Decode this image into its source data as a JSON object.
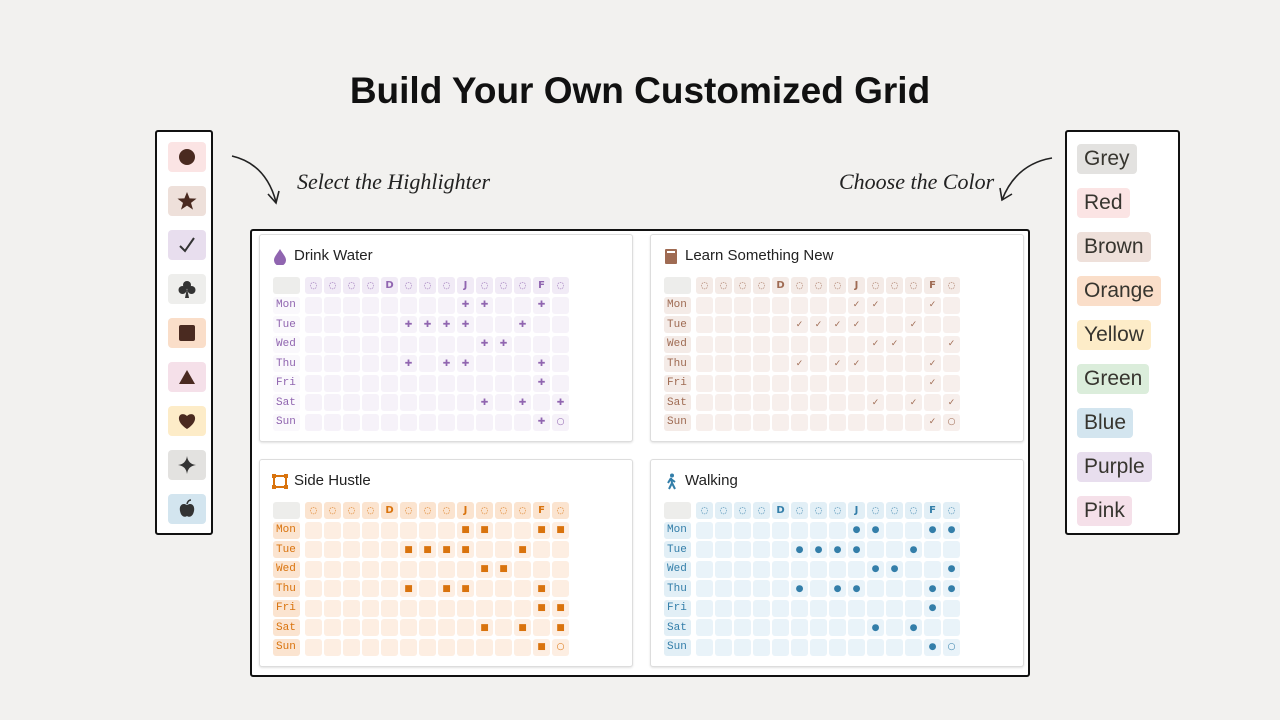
{
  "header": {
    "title": "Build Your Own Customized Grid"
  },
  "highlighter": {
    "label": "Select the Highlighter"
  },
  "color_picker": {
    "label": "Choose the Color",
    "colors": [
      "Grey",
      "Red",
      "Brown",
      "Orange",
      "Yellow",
      "Green",
      "Blue",
      "Purple",
      "Pink"
    ]
  },
  "cards": [
    {
      "title": "Drink Water",
      "columns": [
        "◌",
        "◌",
        "◌",
        "◌",
        "D",
        "◌",
        "◌",
        "◌",
        "J",
        "◌",
        "◌",
        "◌",
        "F",
        "◌"
      ],
      "rows": [
        {
          "day": "Mon",
          "cells": [
            null,
            null,
            null,
            null,
            null,
            null,
            null,
            null,
            "✚",
            "✚",
            null,
            null,
            "✚",
            null
          ]
        },
        {
          "day": "Tue",
          "cells": [
            null,
            null,
            null,
            null,
            null,
            "✚",
            "✚",
            "✚",
            "✚",
            null,
            null,
            "✚",
            null,
            null
          ]
        },
        {
          "day": "Wed",
          "cells": [
            null,
            null,
            null,
            null,
            null,
            null,
            null,
            null,
            null,
            "✚",
            "✚",
            null,
            null,
            null
          ]
        },
        {
          "day": "Thu",
          "cells": [
            null,
            null,
            null,
            null,
            null,
            "✚",
            null,
            "✚",
            "✚",
            null,
            null,
            null,
            "✚",
            null
          ]
        },
        {
          "day": "Fri",
          "cells": [
            null,
            null,
            null,
            null,
            null,
            null,
            null,
            null,
            null,
            null,
            null,
            null,
            "✚",
            null
          ]
        },
        {
          "day": "Sat",
          "cells": [
            null,
            null,
            null,
            null,
            null,
            null,
            null,
            null,
            null,
            "✚",
            null,
            "✚",
            null,
            "✚"
          ]
        },
        {
          "day": "Sun",
          "cells": [
            null,
            null,
            null,
            null,
            null,
            null,
            null,
            null,
            null,
            null,
            null,
            null,
            "✚",
            "○"
          ]
        }
      ]
    },
    {
      "title": "Learn Something New",
      "columns": [
        "◌",
        "◌",
        "◌",
        "◌",
        "D",
        "◌",
        "◌",
        "◌",
        "J",
        "◌",
        "◌",
        "◌",
        "F",
        "◌"
      ],
      "rows": [
        {
          "day": "Mon",
          "cells": [
            null,
            null,
            null,
            null,
            null,
            null,
            null,
            null,
            "✓",
            "✓",
            null,
            null,
            "✓",
            null
          ]
        },
        {
          "day": "Tue",
          "cells": [
            null,
            null,
            null,
            null,
            null,
            "✓",
            "✓",
            "✓",
            "✓",
            null,
            null,
            "✓",
            null,
            null
          ]
        },
        {
          "day": "Wed",
          "cells": [
            null,
            null,
            null,
            null,
            null,
            null,
            null,
            null,
            null,
            "✓",
            "✓",
            null,
            null,
            "✓"
          ]
        },
        {
          "day": "Thu",
          "cells": [
            null,
            null,
            null,
            null,
            null,
            "✓",
            null,
            "✓",
            "✓",
            null,
            null,
            null,
            "✓",
            null
          ]
        },
        {
          "day": "Fri",
          "cells": [
            null,
            null,
            null,
            null,
            null,
            null,
            null,
            null,
            null,
            null,
            null,
            null,
            "✓",
            null
          ]
        },
        {
          "day": "Sat",
          "cells": [
            null,
            null,
            null,
            null,
            null,
            null,
            null,
            null,
            null,
            "✓",
            null,
            "✓",
            null,
            "✓"
          ]
        },
        {
          "day": "Sun",
          "cells": [
            null,
            null,
            null,
            null,
            null,
            null,
            null,
            null,
            null,
            null,
            null,
            null,
            "✓",
            "○"
          ]
        }
      ]
    },
    {
      "title": "Side Hustle",
      "columns": [
        "◌",
        "◌",
        "◌",
        "◌",
        "D",
        "◌",
        "◌",
        "◌",
        "J",
        "◌",
        "◌",
        "◌",
        "F",
        "◌"
      ],
      "rows": [
        {
          "day": "Mon",
          "cells": [
            null,
            null,
            null,
            null,
            null,
            null,
            null,
            null,
            "■",
            "■",
            null,
            null,
            "■",
            "■"
          ]
        },
        {
          "day": "Tue",
          "cells": [
            null,
            null,
            null,
            null,
            null,
            "■",
            "■",
            "■",
            "■",
            null,
            null,
            "■",
            null,
            null
          ]
        },
        {
          "day": "Wed",
          "cells": [
            null,
            null,
            null,
            null,
            null,
            null,
            null,
            null,
            null,
            "■",
            "■",
            null,
            null,
            null
          ]
        },
        {
          "day": "Thu",
          "cells": [
            null,
            null,
            null,
            null,
            null,
            "■",
            null,
            "■",
            "■",
            null,
            null,
            null,
            "■",
            null
          ]
        },
        {
          "day": "Fri",
          "cells": [
            null,
            null,
            null,
            null,
            null,
            null,
            null,
            null,
            null,
            null,
            null,
            null,
            "■",
            "■"
          ]
        },
        {
          "day": "Sat",
          "cells": [
            null,
            null,
            null,
            null,
            null,
            null,
            null,
            null,
            null,
            "■",
            null,
            "■",
            null,
            "■"
          ]
        },
        {
          "day": "Sun",
          "cells": [
            null,
            null,
            null,
            null,
            null,
            null,
            null,
            null,
            null,
            null,
            null,
            null,
            "■",
            "○"
          ]
        }
      ]
    },
    {
      "title": "Walking",
      "columns": [
        "◌",
        "◌",
        "◌",
        "◌",
        "D",
        "◌",
        "◌",
        "◌",
        "J",
        "◌",
        "◌",
        "◌",
        "F",
        "◌"
      ],
      "rows": [
        {
          "day": "Mon",
          "cells": [
            null,
            null,
            null,
            null,
            null,
            null,
            null,
            null,
            "●",
            "●",
            null,
            null,
            "●",
            "●"
          ]
        },
        {
          "day": "Tue",
          "cells": [
            null,
            null,
            null,
            null,
            null,
            "●",
            "●",
            "●",
            "●",
            null,
            null,
            "●",
            null,
            null
          ]
        },
        {
          "day": "Wed",
          "cells": [
            null,
            null,
            null,
            null,
            null,
            null,
            null,
            null,
            null,
            "●",
            "●",
            null,
            null,
            "●"
          ]
        },
        {
          "day": "Thu",
          "cells": [
            null,
            null,
            null,
            null,
            null,
            "●",
            null,
            "●",
            "●",
            null,
            null,
            null,
            "●",
            "●"
          ]
        },
        {
          "day": "Fri",
          "cells": [
            null,
            null,
            null,
            null,
            null,
            null,
            null,
            null,
            null,
            null,
            null,
            null,
            "●",
            null
          ]
        },
        {
          "day": "Sat",
          "cells": [
            null,
            null,
            null,
            null,
            null,
            null,
            null,
            null,
            null,
            "●",
            null,
            "●",
            null,
            null
          ]
        },
        {
          "day": "Sun",
          "cells": [
            null,
            null,
            null,
            null,
            null,
            null,
            null,
            null,
            null,
            null,
            null,
            null,
            "●",
            "○"
          ]
        }
      ]
    }
  ]
}
